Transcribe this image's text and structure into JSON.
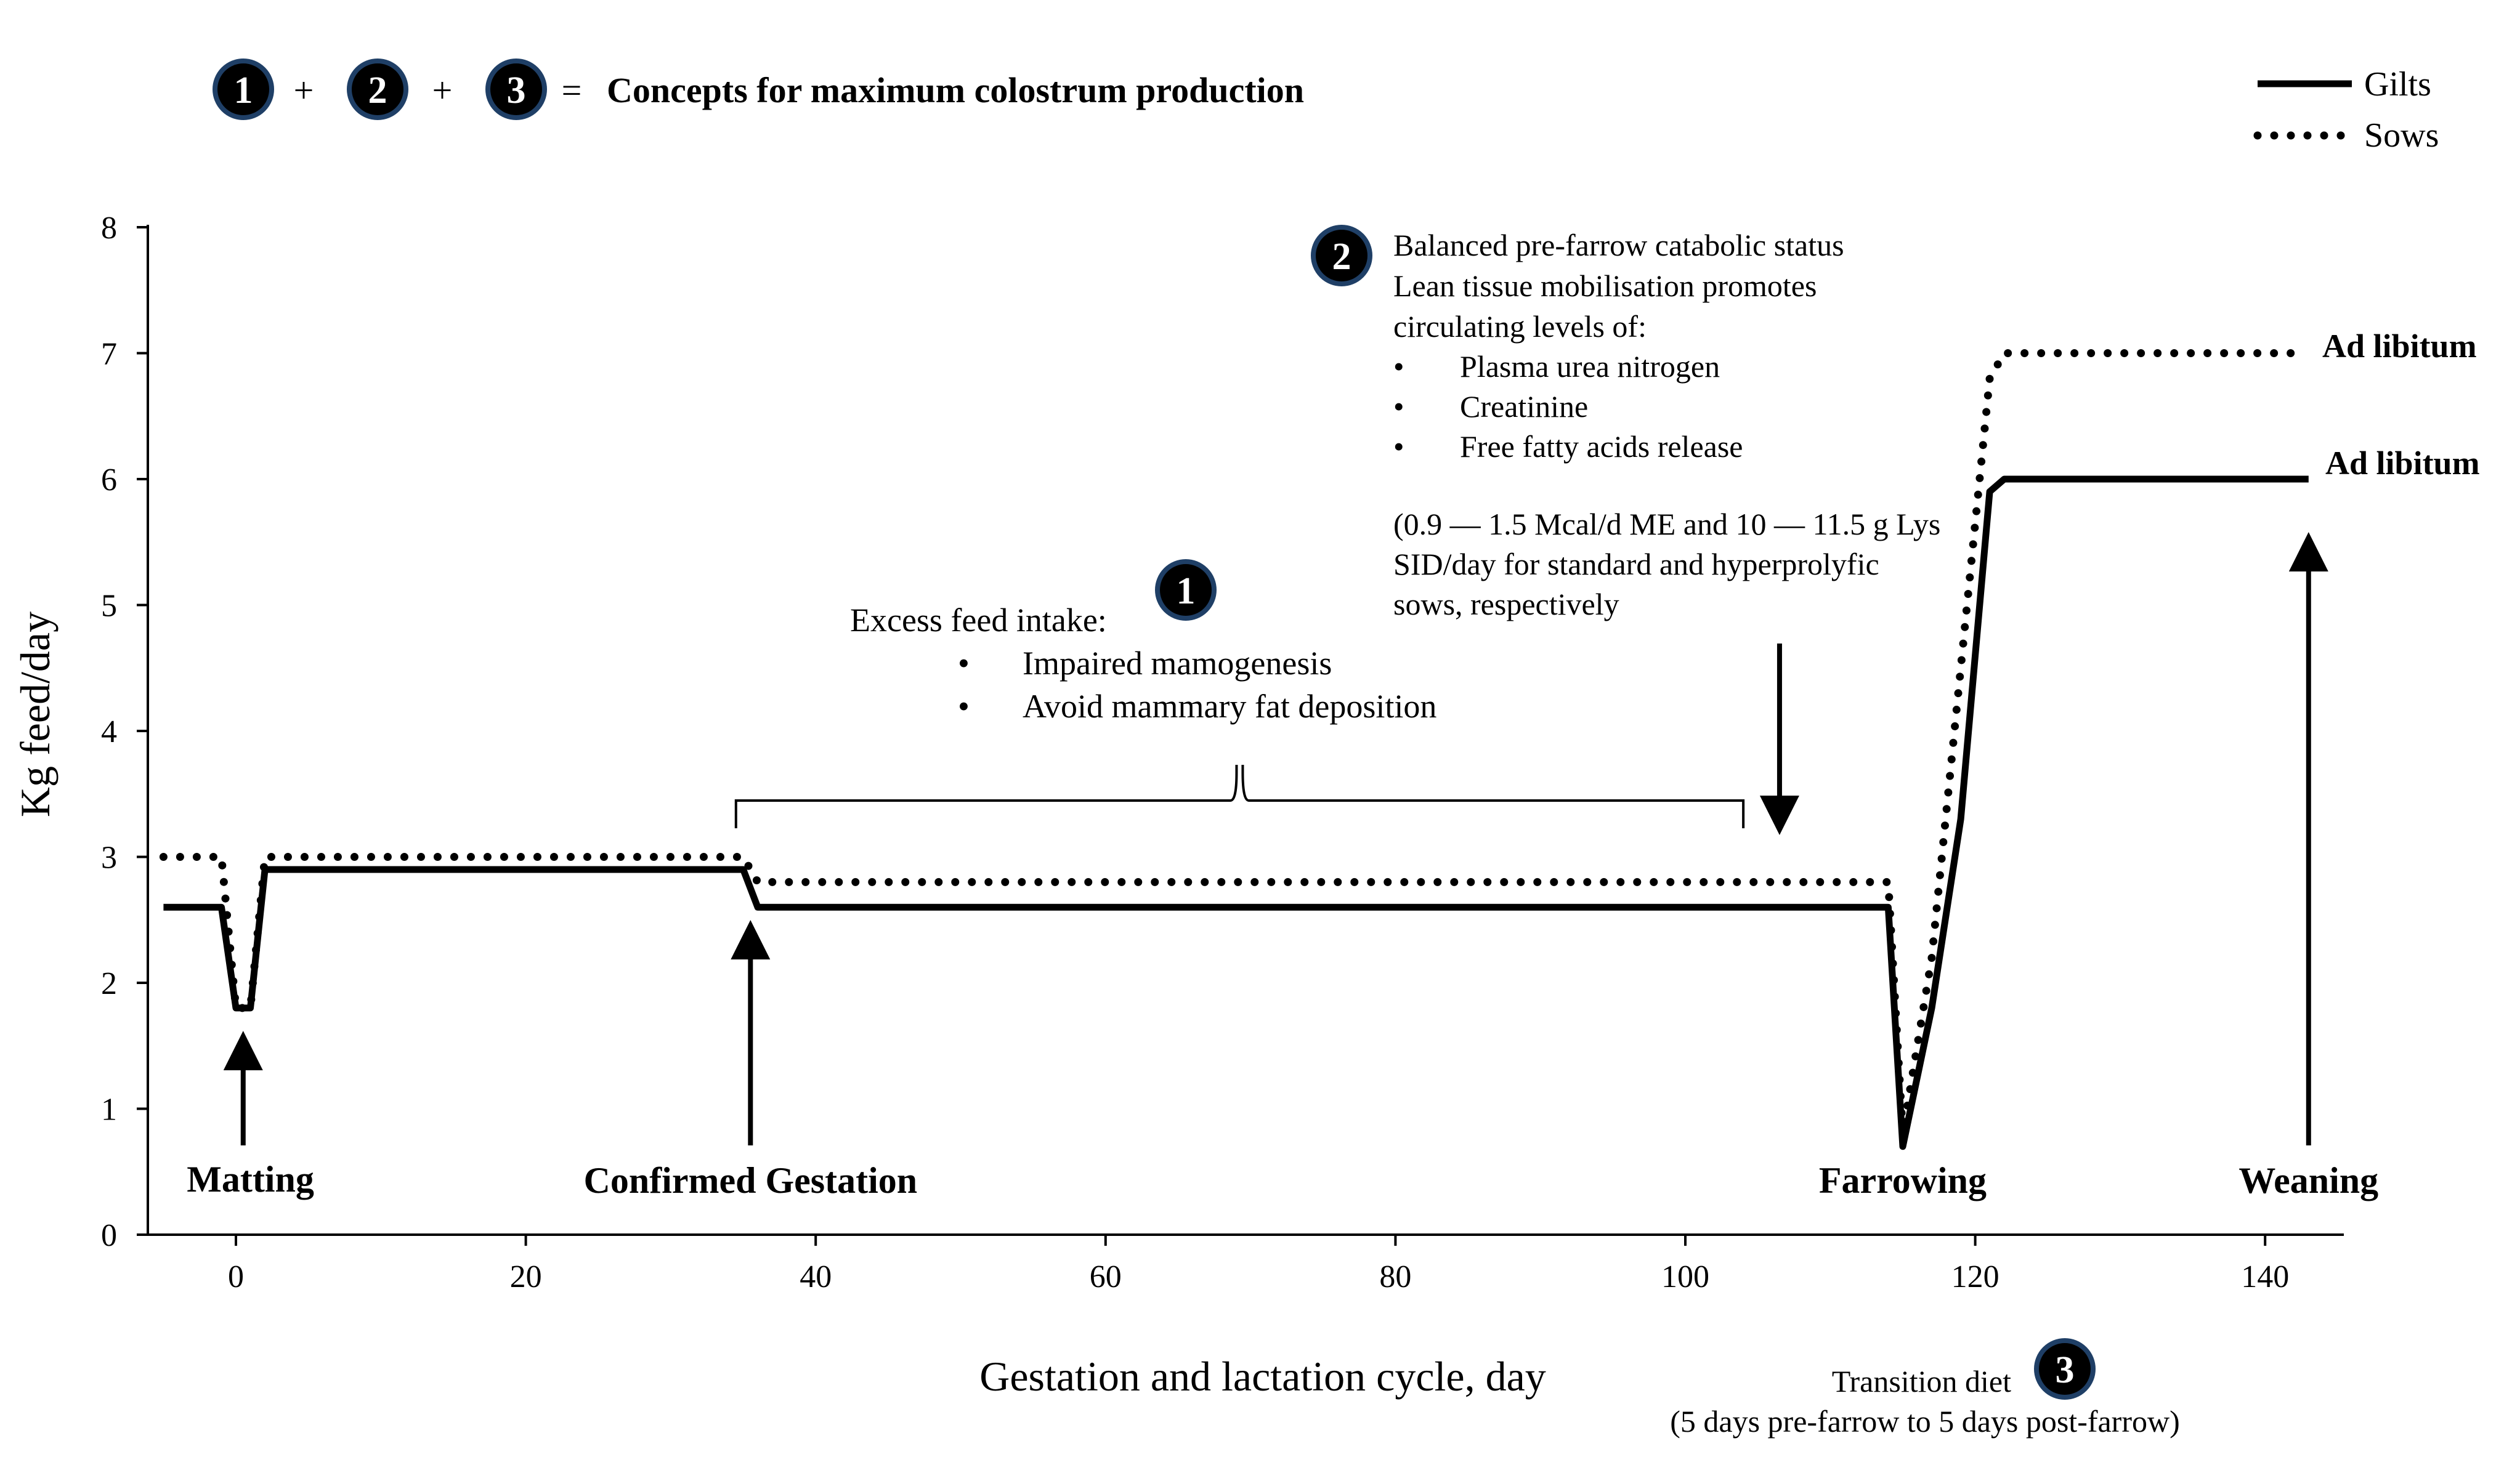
{
  "header": {
    "badges": [
      "1",
      "2",
      "3"
    ],
    "plus": "+",
    "equals": "=",
    "title": "Concepts for maximum colostrum production"
  },
  "legend": {
    "gilts": "Gilts",
    "sows": "Sows"
  },
  "annotations": {
    "excess_title": "Excess feed intake:",
    "excess_bullets": [
      "Impaired mamogenesis",
      "Avoid mammary fat deposition"
    ],
    "balanced_lines": [
      "Balanced pre-farrow catabolic status",
      "Lean tissue mobilisation promotes",
      "circulating  levels of:"
    ],
    "balanced_bullets": [
      "Plasma urea nitrogen",
      "Creatinine",
      "Free fatty acids release"
    ],
    "balanced_note": [
      "(0.9 — 1.5 Mcal/d ME and 10 — 11.5 g Lys",
      "SID/day for standard and hyperprolyfic",
      "sows, respectively"
    ],
    "bullet_char": "•",
    "transition_title": "Transition diet",
    "transition_sub": "(5 days pre-farrow to 5 days post-farrow)",
    "ad_libitum_sows": "Ad libitum",
    "ad_libitum_gilts": "Ad libitum"
  },
  "chart_data": {
    "type": "line",
    "title": "",
    "xlabel": "Gestation and lactation cycle, day",
    "ylabel": "Kg feed/day",
    "xlim": [
      -5,
      145
    ],
    "ylim": [
      0,
      8
    ],
    "xticks": [
      0,
      20,
      40,
      60,
      80,
      100,
      120,
      140
    ],
    "yticks": [
      0,
      1,
      2,
      3,
      4,
      5,
      6,
      7,
      8
    ],
    "series": [
      {
        "name": "Gilts",
        "style": "solid",
        "x": [
          -5,
          -1,
          0,
          1,
          2,
          35,
          36,
          114,
          115,
          117,
          119,
          121,
          122,
          143
        ],
        "y": [
          2.6,
          2.6,
          1.8,
          1.8,
          2.9,
          2.9,
          2.6,
          2.6,
          0.7,
          1.8,
          3.3,
          5.9,
          6.0,
          6.0
        ]
      },
      {
        "name": "Sows",
        "style": "dotted",
        "x": [
          -5,
          -1,
          0,
          1,
          2,
          35,
          36,
          114,
          115,
          117,
          119,
          121,
          122,
          142
        ],
        "y": [
          3.0,
          3.0,
          1.8,
          1.8,
          3.0,
          3.0,
          2.8,
          2.8,
          0.8,
          2.2,
          4.5,
          6.8,
          7.0,
          7.0
        ]
      }
    ],
    "events": [
      {
        "label": "Matting",
        "day": 0.5
      },
      {
        "label": "Confirmed Gestation",
        "day": 35.5
      },
      {
        "label": "Farrowing",
        "day": 115
      },
      {
        "label": "Weaning",
        "day": 143
      }
    ],
    "excess_range": [
      34.5,
      104
    ],
    "catabolic_arrow_day": 106.5
  },
  "colors": {
    "line": "#000000",
    "badge": "#000000",
    "badge_ring": "#1f3f66",
    "background": "#ffffff"
  }
}
